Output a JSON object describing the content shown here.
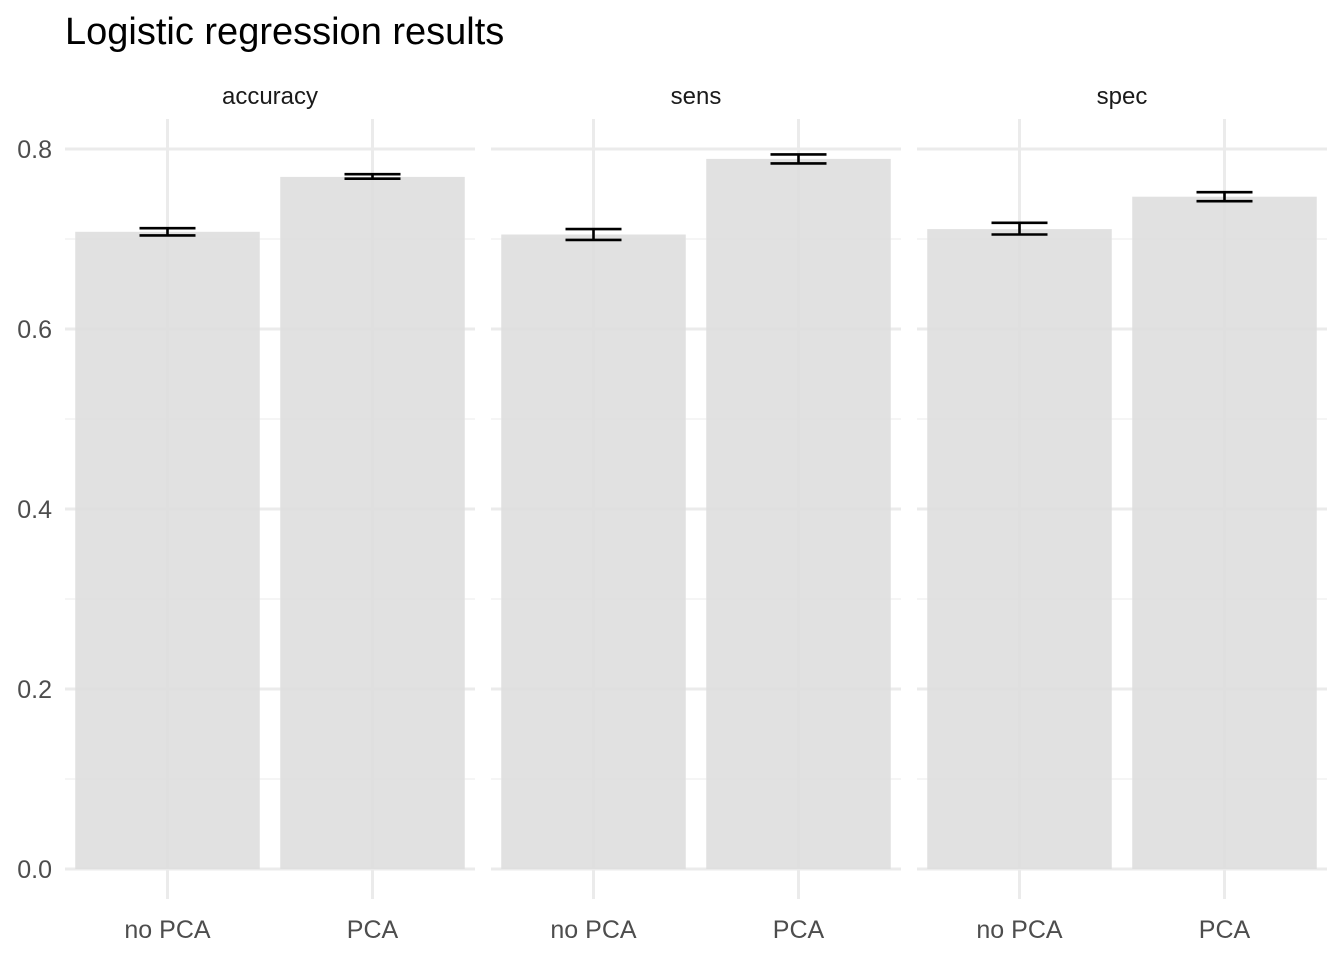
{
  "chart_data": {
    "type": "bar",
    "title": "Logistic regression results",
    "xlabel": "",
    "ylabel": "",
    "ylim": [
      0,
      0.8
    ],
    "y_ticks": [
      "0.0",
      "0.2",
      "0.4",
      "0.6",
      "0.8"
    ],
    "y_tick_values": [
      0,
      0.2,
      0.4,
      0.6,
      0.8
    ],
    "categories": [
      "no PCA",
      "PCA"
    ],
    "grid": true,
    "bar_color": "#dedede",
    "errorbar_color": "#000000",
    "facets": [
      {
        "name": "accuracy",
        "values": [
          0.708,
          0.769
        ],
        "error_low": [
          0.704,
          0.767
        ],
        "error_high": [
          0.712,
          0.772
        ]
      },
      {
        "name": "sens",
        "values": [
          0.705,
          0.789
        ],
        "error_low": [
          0.699,
          0.784
        ],
        "error_high": [
          0.711,
          0.794
        ]
      },
      {
        "name": "spec",
        "values": [
          0.711,
          0.747
        ],
        "error_low": [
          0.705,
          0.742
        ],
        "error_high": [
          0.718,
          0.752
        ]
      }
    ]
  }
}
